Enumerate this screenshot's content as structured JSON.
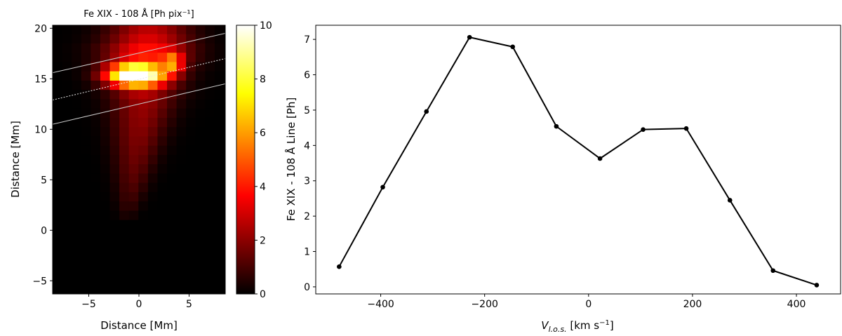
{
  "chart_data": [
    {
      "type": "heatmap",
      "title": "Fe XIX - 108 Å [Ph pix⁻¹]",
      "xlabel": "Distance [Mm]",
      "ylabel": "Distance [Mm]",
      "xlim": [
        -8.6,
        8.6
      ],
      "ylim": [
        -6.3,
        20.3
      ],
      "x_ticks": [
        -5,
        0,
        5
      ],
      "y_ticks": [
        -5,
        0,
        5,
        10,
        15,
        20
      ],
      "colormap": "hot",
      "colorbar": {
        "min": 0,
        "max": 10,
        "ticks": [
          0,
          2,
          4,
          6,
          8,
          10
        ]
      },
      "overlay_lines": [
        {
          "style": "solid",
          "color": "#c8c8c8",
          "from": [
            -8.6,
            15.6
          ],
          "to": [
            8.6,
            19.5
          ]
        },
        {
          "style": "dashed",
          "color": "#e8e8e8",
          "from": [
            -8.6,
            12.9
          ],
          "to": [
            8.6,
            17.0
          ]
        },
        {
          "style": "solid",
          "color": "#c8c8c8",
          "from": [
            -8.6,
            10.5
          ],
          "to": [
            8.6,
            14.5
          ]
        }
      ]
    },
    {
      "type": "line",
      "xlabel": "V_l.o.s. [km s⁻¹]",
      "ylabel": "Fe XIX - 108 Å Line [Ph]",
      "xlim": [
        -525,
        485
      ],
      "ylim": [
        -0.2,
        7.4
      ],
      "x_ticks": [
        -400,
        -200,
        0,
        200,
        400
      ],
      "y_ticks": [
        0,
        1,
        2,
        3,
        4,
        5,
        6,
        7
      ],
      "series": [
        {
          "color": "#000000",
          "marker": "circle",
          "x": [
            -480,
            -396,
            -312,
            -229,
            -146,
            -62,
            22,
            105,
            188,
            272,
            355,
            439
          ],
          "y": [
            0.57,
            2.82,
            4.96,
            7.06,
            6.79,
            4.54,
            3.63,
            4.45,
            4.48,
            2.45,
            0.46,
            0.05
          ]
        }
      ]
    }
  ]
}
